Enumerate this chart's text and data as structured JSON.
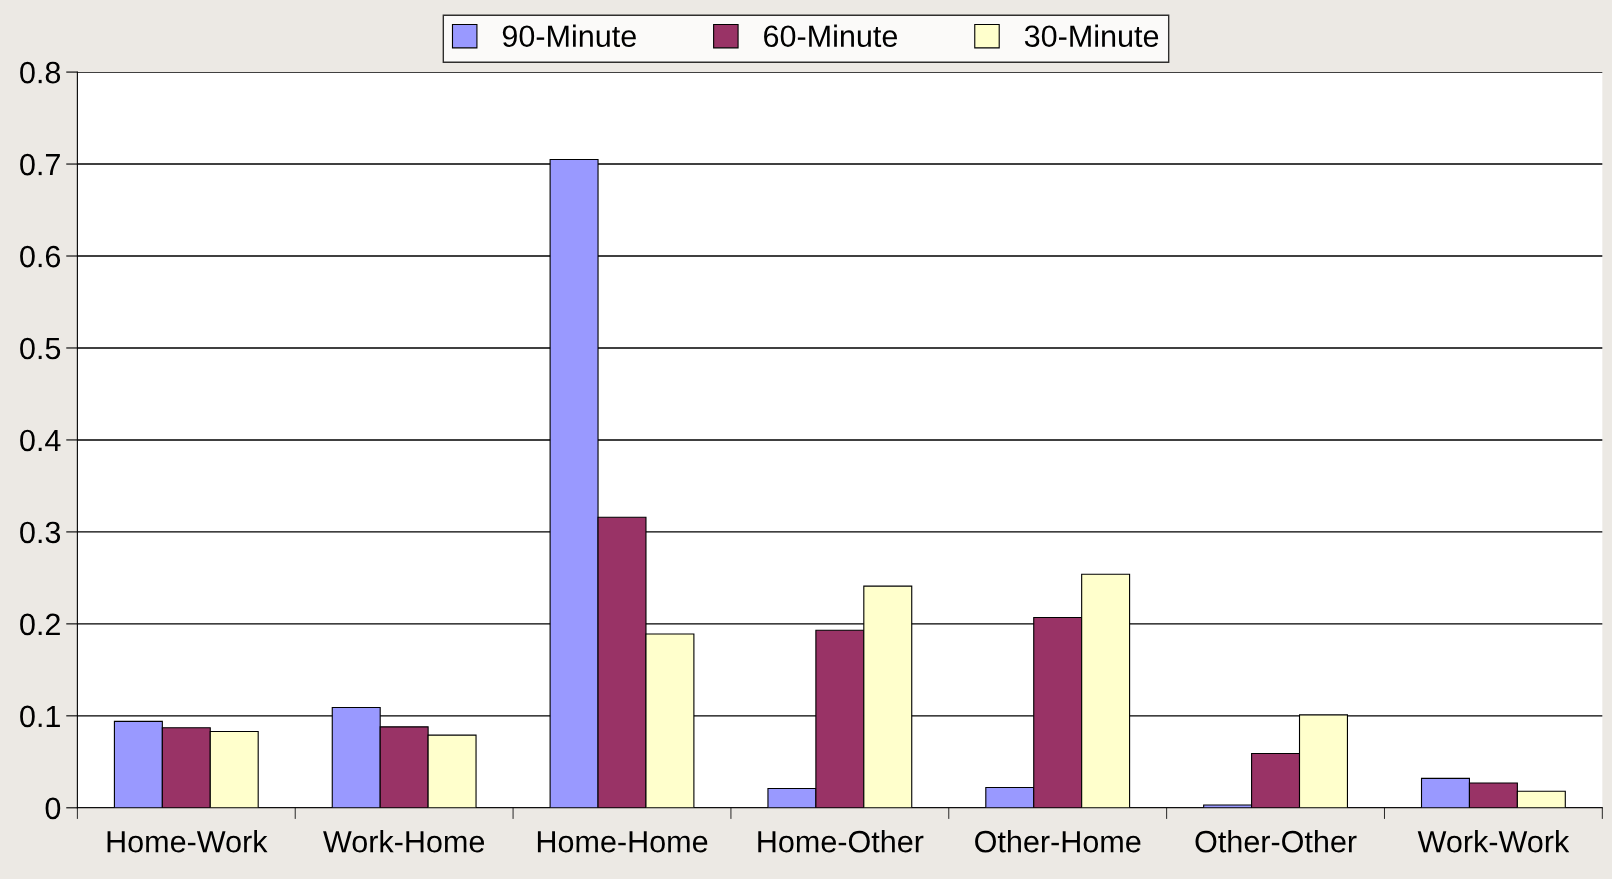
{
  "chart_data": {
    "type": "bar",
    "categories": [
      "Home-Work",
      "Work-Home",
      "Home-Home",
      "Home-Other",
      "Other-Home",
      "Other-Other",
      "Work-Work"
    ],
    "series": [
      {
        "name": "90-Minute",
        "color": "#9999ff",
        "values": [
          0.094,
          0.109,
          0.705,
          0.021,
          0.022,
          0.003,
          0.032
        ]
      },
      {
        "name": "60-Minute",
        "color": "#993366",
        "values": [
          0.087,
          0.088,
          0.316,
          0.193,
          0.207,
          0.059,
          0.027
        ]
      },
      {
        "name": "30-Minute",
        "color": "#ffffcc",
        "values": [
          0.083,
          0.079,
          0.189,
          0.241,
          0.254,
          0.101,
          0.018
        ]
      }
    ],
    "ylim": [
      0,
      0.8
    ],
    "yticks": [
      {
        "value": 0,
        "label": "0"
      },
      0.1,
      0.2,
      0.3,
      0.4,
      0.5,
      0.6,
      0.7,
      0.8
    ],
    "grid": "y",
    "legend": "top"
  }
}
